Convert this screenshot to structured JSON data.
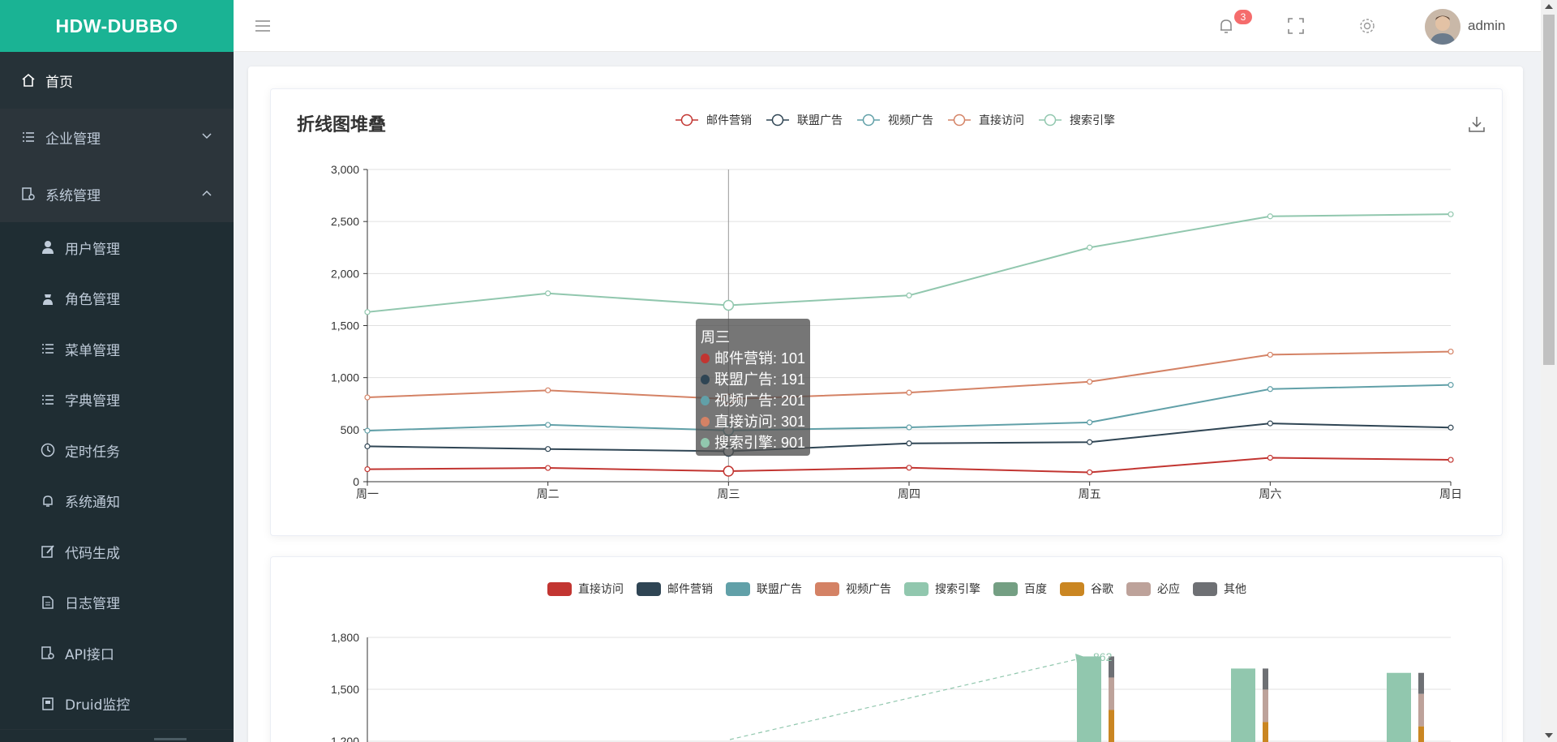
{
  "app": {
    "logo": "HDW-DUBBO"
  },
  "sidebar": {
    "home": "首页",
    "groups": [
      {
        "label": "企业管理",
        "expanded": false
      },
      {
        "label": "系统管理",
        "expanded": true
      }
    ],
    "sub_items": [
      "用户管理",
      "角色管理",
      "菜单管理",
      "字典管理",
      "定时任务",
      "系统通知",
      "代码生成",
      "日志管理",
      "API接口",
      "Druid监控"
    ]
  },
  "header": {
    "notification_count": "3",
    "username": "admin"
  },
  "chart1": {
    "title": "折线图堆叠",
    "tooltip": {
      "title": "周三",
      "rows": [
        "邮件营销: 101",
        "联盟广告: 191",
        "视频广告: 201",
        "直接访问: 301",
        "搜索引擎: 901"
      ]
    }
  },
  "colors": {
    "accent": "#1ab394",
    "sidebar_bg": "#263238",
    "series": [
      "#c23531",
      "#2f4554",
      "#61a0a8",
      "#d48265",
      "#91c7ae",
      "#749f83",
      "#ca8622",
      "#bda29a",
      "#6e7074"
    ]
  },
  "chart_data": [
    {
      "type": "line",
      "title": "折线图堆叠",
      "stacked": true,
      "categories": [
        "周一",
        "周二",
        "周三",
        "周四",
        "周五",
        "周六",
        "周日"
      ],
      "ylim": [
        0,
        3000
      ],
      "yticks": [
        "0",
        "500",
        "1,000",
        "1,500",
        "2,000",
        "2,500",
        "3,000"
      ],
      "legend_position": "top-center",
      "grid": true,
      "series": [
        {
          "name": "邮件营销",
          "color": "#c23531",
          "values": [
            120,
            132,
            101,
            134,
            90,
            230,
            210
          ]
        },
        {
          "name": "联盟广告",
          "color": "#2f4554",
          "values": [
            220,
            182,
            191,
            234,
            290,
            330,
            310
          ]
        },
        {
          "name": "视频广告",
          "color": "#61a0a8",
          "values": [
            150,
            232,
            201,
            154,
            190,
            330,
            410
          ]
        },
        {
          "name": "直接访问",
          "color": "#d48265",
          "values": [
            320,
            332,
            301,
            334,
            390,
            330,
            320
          ]
        },
        {
          "name": "搜索引擎",
          "color": "#91c7ae",
          "values": [
            820,
            932,
            901,
            934,
            1290,
            1330,
            1320
          ]
        }
      ]
    },
    {
      "type": "bar",
      "ylim": [
        1200,
        1800
      ],
      "yticks": [
        "1,200",
        "1,500",
        "1,800"
      ],
      "legend_position": "top-center",
      "grid": true,
      "legend": [
        {
          "name": "直接访问",
          "color": "#c23531"
        },
        {
          "name": "邮件营销",
          "color": "#2f4554"
        },
        {
          "name": "联盟广告",
          "color": "#61a0a8"
        },
        {
          "name": "视频广告",
          "color": "#d48265"
        },
        {
          "name": "搜索引擎",
          "color": "#91c7ae"
        },
        {
          "name": "百度",
          "color": "#749f83"
        },
        {
          "name": "谷歌",
          "color": "#ca8622"
        },
        {
          "name": "必应",
          "color": "#bda29a"
        },
        {
          "name": "其他",
          "color": "#6e7074"
        }
      ],
      "annotation": "862"
    }
  ]
}
